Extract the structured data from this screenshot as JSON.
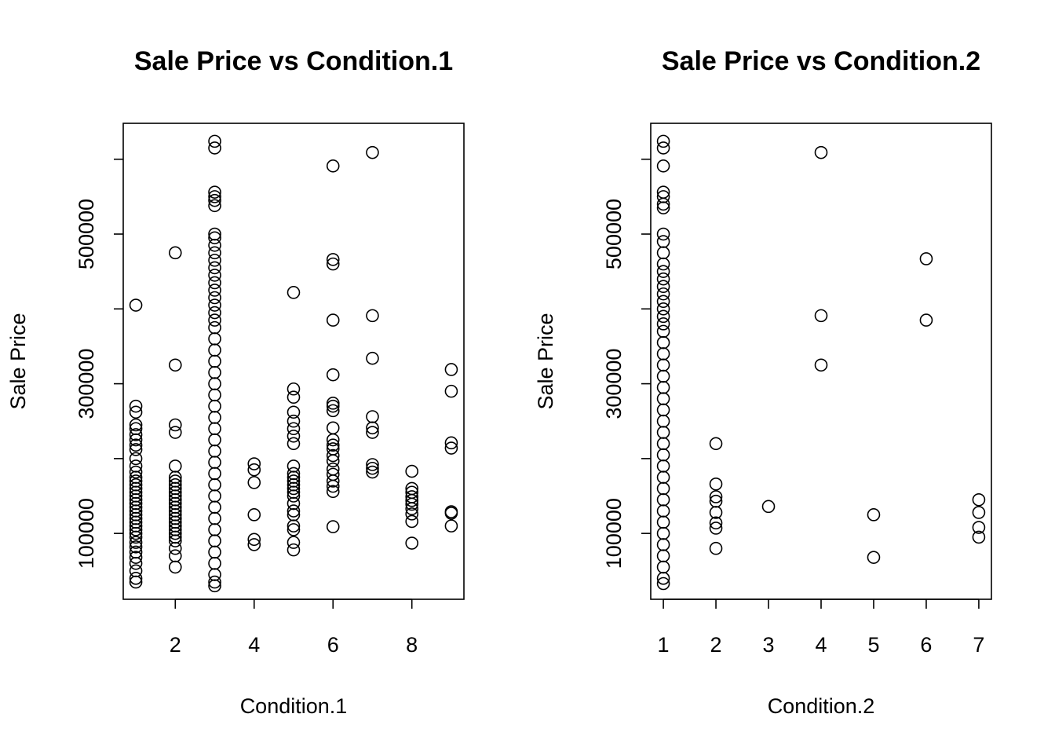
{
  "chart_data": [
    {
      "type": "scatter",
      "title": "Sale Price vs Condition.1",
      "x_label": "Condition.1",
      "y_label": "Sale Price",
      "color": "#000000",
      "xlim": [
        0.68,
        9.32
      ],
      "xticks": [
        2,
        4,
        6,
        8
      ],
      "ylim": [
        12000,
        648000
      ],
      "yticks": [
        100000,
        {
          "value": 200000,
          "label": null
        },
        300000,
        {
          "value": 400000,
          "label": null
        },
        500000,
        {
          "value": 600000,
          "label": null
        }
      ],
      "x": [
        1,
        1,
        1,
        1,
        1,
        1,
        1,
        1,
        1,
        1,
        1,
        1,
        1,
        1,
        1,
        1,
        1,
        1,
        1,
        1,
        1,
        1,
        1,
        1,
        1,
        1,
        1,
        1,
        1,
        1,
        1,
        1,
        1,
        1,
        1,
        1,
        1,
        2,
        2,
        2,
        2,
        2,
        2,
        2,
        2,
        2,
        2,
        2,
        2,
        2,
        2,
        2,
        2,
        2,
        2,
        2,
        2,
        2,
        2,
        2,
        2,
        2,
        2,
        3,
        3,
        3,
        3,
        3,
        3,
        3,
        3,
        3,
        3,
        3,
        3,
        3,
        3,
        3,
        3,
        3,
        3,
        3,
        3,
        3,
        3,
        3,
        3,
        3,
        3,
        3,
        3,
        3,
        3,
        3,
        3,
        3,
        3,
        3,
        3,
        3,
        3,
        3,
        3,
        3,
        3,
        3,
        3,
        4,
        4,
        4,
        4,
        4,
        4,
        5,
        5,
        5,
        5,
        5,
        5,
        5,
        5,
        5,
        5,
        5,
        5,
        5,
        5,
        5,
        5,
        5,
        5,
        5,
        5,
        5,
        5,
        5,
        6,
        6,
        6,
        6,
        6,
        6,
        6,
        6,
        6,
        6,
        6,
        6,
        6,
        6,
        6,
        6,
        6,
        6,
        6,
        6,
        7,
        7,
        7,
        7,
        7,
        7,
        7,
        7,
        7,
        8,
        8,
        8,
        8,
        8,
        8,
        8,
        8,
        8,
        8,
        9,
        9,
        9,
        9,
        9,
        9,
        9
      ],
      "values": [
        405000,
        270000,
        262000,
        245000,
        240000,
        232000,
        225000,
        218000,
        212000,
        200000,
        190000,
        182000,
        175000,
        170000,
        165000,
        160000,
        155000,
        150000,
        145000,
        140000,
        135000,
        130000,
        125000,
        120000,
        115000,
        110000,
        105000,
        100000,
        95000,
        88000,
        82000,
        75000,
        68000,
        60000,
        50000,
        40000,
        35000,
        475000,
        325000,
        245000,
        235000,
        190000,
        175000,
        170000,
        165000,
        160000,
        155000,
        150000,
        145000,
        140000,
        135000,
        130000,
        125000,
        120000,
        115000,
        110000,
        105000,
        100000,
        95000,
        90000,
        80000,
        70000,
        55000,
        624000,
        615000,
        556000,
        550000,
        545000,
        538000,
        500000,
        495000,
        485000,
        475000,
        465000,
        455000,
        445000,
        435000,
        425000,
        415000,
        405000,
        395000,
        385000,
        375000,
        360000,
        345000,
        330000,
        315000,
        300000,
        285000,
        270000,
        255000,
        240000,
        225000,
        210000,
        195000,
        180000,
        165000,
        150000,
        135000,
        120000,
        105000,
        90000,
        75000,
        60000,
        45000,
        35000,
        30000,
        193000,
        185000,
        168000,
        125000,
        92000,
        85000,
        422000,
        293000,
        282000,
        262000,
        250000,
        240000,
        230000,
        220000,
        190000,
        180000,
        175000,
        170000,
        165000,
        160000,
        155000,
        150000,
        140000,
        130000,
        125000,
        110000,
        105000,
        88000,
        78000,
        591000,
        466000,
        460000,
        385000,
        312000,
        274000,
        270000,
        264000,
        241000,
        225000,
        218000,
        213000,
        204000,
        197000,
        186000,
        179000,
        170000,
        163000,
        156000,
        109000,
        609000,
        391000,
        334000,
        256000,
        241000,
        235000,
        192000,
        187000,
        182000,
        183000,
        160000,
        155000,
        149000,
        144000,
        139000,
        133000,
        126000,
        116000,
        87000,
        319000,
        290000,
        221000,
        214000,
        129000,
        127000,
        110000
      ]
    },
    {
      "type": "scatter",
      "title": "Sale Price vs Condition.2",
      "x_label": "Condition.2",
      "y_label": "Sale Price",
      "color": "#000000",
      "xlim": [
        0.76,
        7.24
      ],
      "xticks": [
        1,
        2,
        3,
        4,
        5,
        6,
        7
      ],
      "ylim": [
        12000,
        648000
      ],
      "yticks": [
        100000,
        {
          "value": 200000,
          "label": null
        },
        300000,
        {
          "value": 400000,
          "label": null
        },
        500000,
        {
          "value": 600000,
          "label": null
        }
      ],
      "x": [
        1,
        1,
        1,
        1,
        1,
        1,
        1,
        1,
        1,
        1,
        1,
        1,
        1,
        1,
        1,
        1,
        1,
        1,
        1,
        1,
        1,
        1,
        1,
        1,
        1,
        1,
        1,
        1,
        1,
        1,
        1,
        1,
        1,
        1,
        1,
        1,
        1,
        1,
        1,
        1,
        1,
        1,
        1,
        2,
        2,
        2,
        2,
        2,
        2,
        2,
        2,
        3,
        4,
        4,
        4,
        5,
        5,
        6,
        6,
        7,
        7,
        7,
        7
      ],
      "values": [
        624000,
        615000,
        591000,
        556000,
        550000,
        540000,
        535000,
        500000,
        490000,
        475000,
        460000,
        450000,
        440000,
        430000,
        420000,
        410000,
        400000,
        390000,
        380000,
        370000,
        355000,
        340000,
        325000,
        310000,
        295000,
        280000,
        265000,
        250000,
        235000,
        220000,
        205000,
        190000,
        175000,
        160000,
        145000,
        130000,
        115000,
        100000,
        85000,
        70000,
        55000,
        40000,
        33000,
        220000,
        166000,
        149000,
        143000,
        128000,
        114000,
        107000,
        80000,
        136000,
        609000,
        391000,
        325000,
        125000,
        68000,
        467000,
        385000,
        145000,
        128000,
        108000,
        95000
      ]
    }
  ]
}
